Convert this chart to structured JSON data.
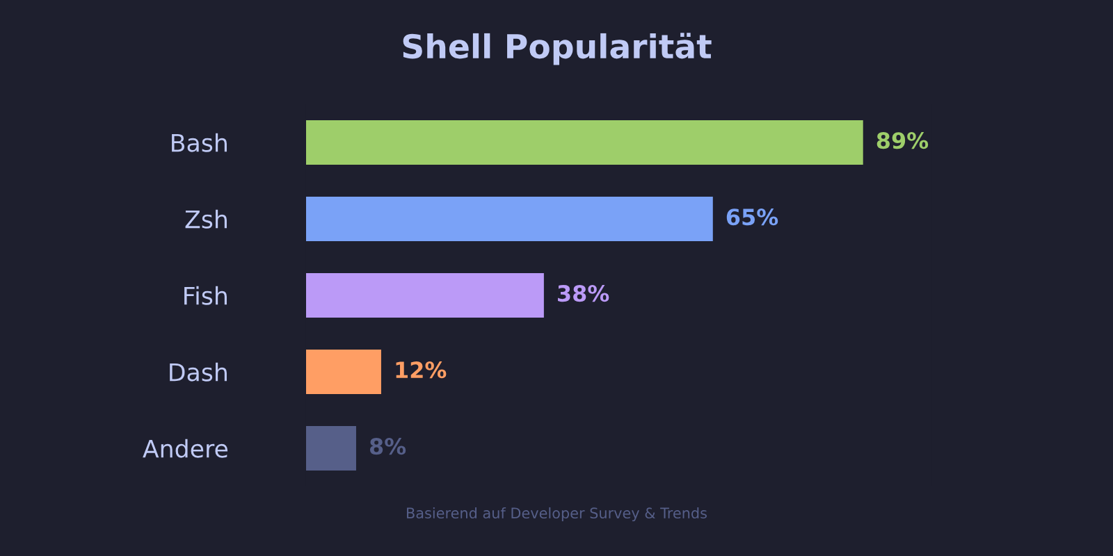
{
  "chart_data": {
    "type": "bar",
    "orientation": "horizontal",
    "title": "Shell Popularität",
    "categories": [
      "Bash",
      "Zsh",
      "Fish",
      "Dash",
      "Andere"
    ],
    "values": [
      89,
      65,
      38,
      12,
      8
    ],
    "colors": [
      "#9ece6a",
      "#7aa2f7",
      "#bb9af7",
      "#ff9e64",
      "#565f89"
    ],
    "value_labels": [
      "89%",
      "65%",
      "38%",
      "12%",
      "8%"
    ],
    "annotations": [
      "Basierend auf Developer Survey & Trends"
    ],
    "grid": false,
    "legend": false
  }
}
